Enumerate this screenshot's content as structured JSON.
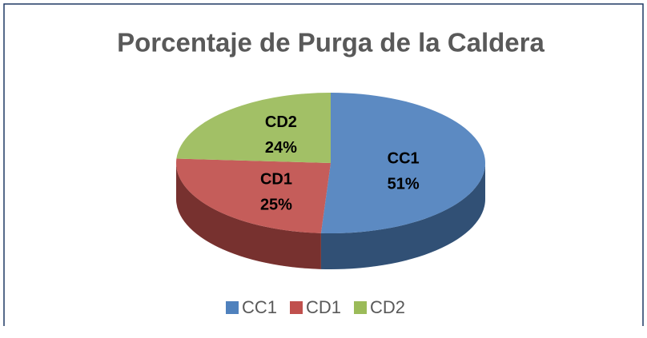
{
  "chart_data": {
    "type": "pie",
    "title": "Porcentaje de Purga de la Caldera",
    "categories": [
      "CC1",
      "CD1",
      "CD2"
    ],
    "values": [
      51,
      25,
      24
    ],
    "value_labels": [
      "51%",
      "25%",
      "24%"
    ],
    "colors": [
      "#4f81bd",
      "#c0504d",
      "#9bbb59"
    ],
    "legend": "bottom"
  }
}
